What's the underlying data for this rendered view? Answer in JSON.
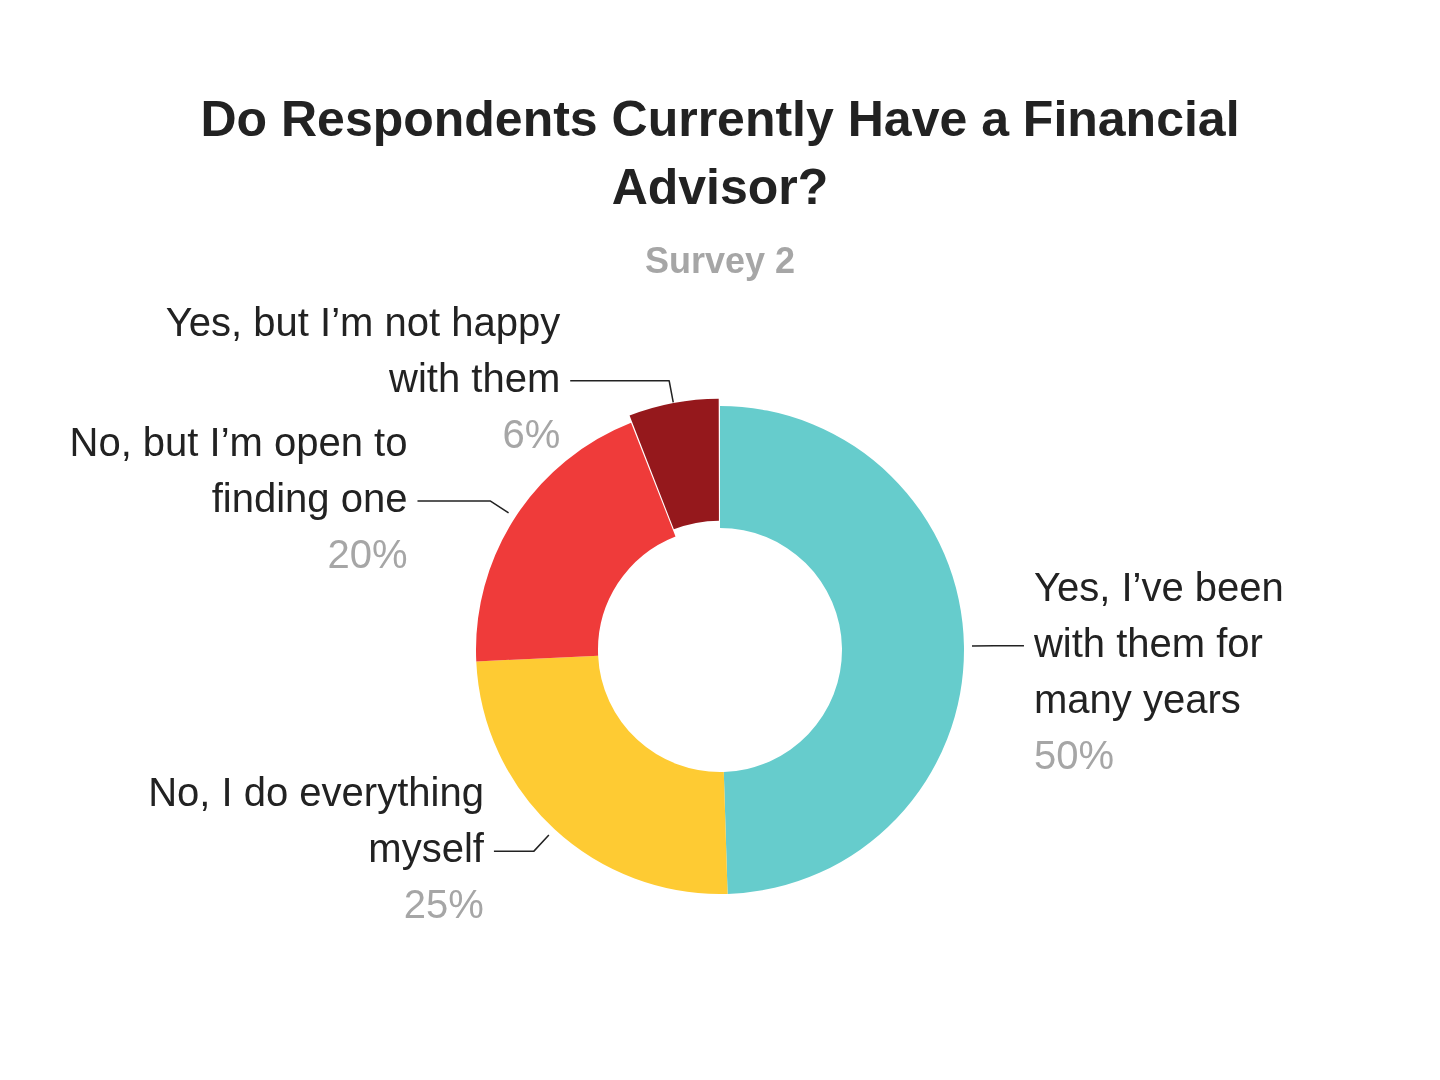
{
  "chart_data": {
    "type": "donut",
    "title": "Do Respondents Currently Have a Financial Advisor?",
    "subtitle": "Survey 2",
    "categories": [
      "Yes, I’ve been with them for many years",
      "No, I do everything myself",
      "No, but I’m open to finding one",
      "Yes, but I’m not happy with them"
    ],
    "values": [
      50,
      25,
      20,
      6
    ],
    "value_labels": [
      "50%",
      "25%",
      "20%",
      "6%"
    ],
    "colors": [
      "#66cccc",
      "#fecb33",
      "#ef3b3a",
      "#95181c"
    ],
    "legend": false
  }
}
